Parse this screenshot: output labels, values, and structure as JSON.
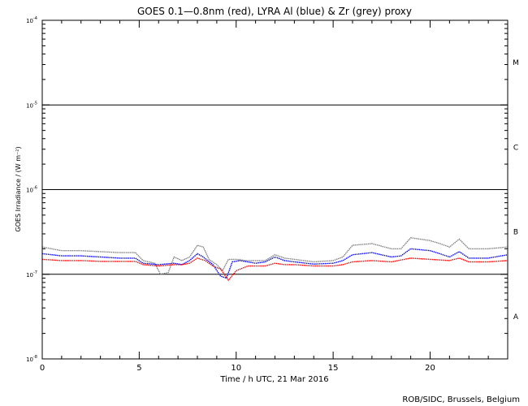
{
  "chart_data": {
    "type": "line",
    "title": "GOES 0.1—0.8nm (red), LYRA Al (blue) & Zr (grey) proxy",
    "xlabel": "Time / h UTC, 21 Mar 2016",
    "ylabel": "GOES Irradiance / (W m⁻²)",
    "xlim": [
      0,
      24
    ],
    "ylim": [
      1e-08,
      0.0001
    ],
    "yscale": "log",
    "x_ticks": [
      0,
      5,
      10,
      15,
      20
    ],
    "y_ticks": [
      {
        "value": 1e-08,
        "base": "10",
        "exp": "-8"
      },
      {
        "value": 1e-07,
        "base": "10",
        "exp": "-7"
      },
      {
        "value": 1e-06,
        "base": "10",
        "exp": "-6"
      },
      {
        "value": 1e-05,
        "base": "10",
        "exp": "-5"
      },
      {
        "value": 0.0001,
        "base": "10",
        "exp": "-4"
      }
    ],
    "flare_class_lines": [
      1e-07,
      1e-06,
      1e-05
    ],
    "flare_classes": [
      {
        "label": "A",
        "value": 3.16e-08
      },
      {
        "label": "B",
        "value": 3.16e-07
      },
      {
        "label": "C",
        "value": 3.16e-06
      },
      {
        "label": "M",
        "value": 3.16e-05
      }
    ],
    "series": [
      {
        "color": "#808080",
        "points": [
          [
            0,
            2.1e-07
          ],
          [
            1,
            1.9e-07
          ],
          [
            2,
            1.9e-07
          ],
          [
            3,
            1.85e-07
          ],
          [
            4,
            1.8e-07
          ],
          [
            4.8,
            1.8e-07
          ],
          [
            5.2,
            1.45e-07
          ],
          [
            5.8,
            1.35e-07
          ],
          [
            6.1,
            1e-07
          ],
          [
            6.5,
            1.05e-07
          ],
          [
            6.8,
            1.6e-07
          ],
          [
            7.2,
            1.45e-07
          ],
          [
            7.6,
            1.6e-07
          ],
          [
            8,
            2.2e-07
          ],
          [
            8.3,
            2.1e-07
          ],
          [
            8.6,
            1.5e-07
          ],
          [
            9,
            1.3e-07
          ],
          [
            9.3,
            1.1e-07
          ],
          [
            9.6,
            1.5e-07
          ],
          [
            10,
            1.5e-07
          ],
          [
            10.5,
            1.45e-07
          ],
          [
            11,
            1.45e-07
          ],
          [
            11.5,
            1.45e-07
          ],
          [
            12,
            1.7e-07
          ],
          [
            12.5,
            1.55e-07
          ],
          [
            13,
            1.5e-07
          ],
          [
            14,
            1.4e-07
          ],
          [
            15,
            1.45e-07
          ],
          [
            15.5,
            1.6e-07
          ],
          [
            16,
            2.2e-07
          ],
          [
            17,
            2.3e-07
          ],
          [
            18,
            2e-07
          ],
          [
            18.5,
            2e-07
          ],
          [
            19,
            2.7e-07
          ],
          [
            20,
            2.5e-07
          ],
          [
            20.5,
            2.3e-07
          ],
          [
            21,
            2.1e-07
          ],
          [
            21.5,
            2.6e-07
          ],
          [
            22,
            2e-07
          ],
          [
            23,
            2e-07
          ],
          [
            24,
            2.1e-07
          ]
        ]
      },
      {
        "color": "#0000ff",
        "points": [
          [
            0,
            1.75e-07
          ],
          [
            1,
            1.65e-07
          ],
          [
            2,
            1.65e-07
          ],
          [
            3,
            1.6e-07
          ],
          [
            4,
            1.55e-07
          ],
          [
            4.8,
            1.55e-07
          ],
          [
            5.2,
            1.35e-07
          ],
          [
            6,
            1.3e-07
          ],
          [
            6.8,
            1.35e-07
          ],
          [
            7.2,
            1.3e-07
          ],
          [
            7.6,
            1.45e-07
          ],
          [
            8,
            1.75e-07
          ],
          [
            8.3,
            1.6e-07
          ],
          [
            8.8,
            1.3e-07
          ],
          [
            9.2,
            9.5e-08
          ],
          [
            9.5,
            9e-08
          ],
          [
            9.8,
            1.4e-07
          ],
          [
            10.2,
            1.45e-07
          ],
          [
            11,
            1.35e-07
          ],
          [
            11.5,
            1.4e-07
          ],
          [
            12,
            1.6e-07
          ],
          [
            12.5,
            1.45e-07
          ],
          [
            13,
            1.4e-07
          ],
          [
            14,
            1.32e-07
          ],
          [
            15,
            1.35e-07
          ],
          [
            15.5,
            1.45e-07
          ],
          [
            16,
            1.7e-07
          ],
          [
            17,
            1.8e-07
          ],
          [
            18,
            1.6e-07
          ],
          [
            18.5,
            1.65e-07
          ],
          [
            19,
            2e-07
          ],
          [
            20,
            1.9e-07
          ],
          [
            20.5,
            1.75e-07
          ],
          [
            21,
            1.6e-07
          ],
          [
            21.5,
            1.85e-07
          ],
          [
            22,
            1.55e-07
          ],
          [
            23,
            1.55e-07
          ],
          [
            24,
            1.7e-07
          ]
        ]
      },
      {
        "color": "#ff0000",
        "points": [
          [
            0,
            1.5e-07
          ],
          [
            1,
            1.45e-07
          ],
          [
            2,
            1.45e-07
          ],
          [
            3,
            1.42e-07
          ],
          [
            4,
            1.42e-07
          ],
          [
            4.8,
            1.42e-07
          ],
          [
            5.2,
            1.3e-07
          ],
          [
            6,
            1.25e-07
          ],
          [
            6.8,
            1.3e-07
          ],
          [
            7.2,
            1.3e-07
          ],
          [
            7.6,
            1.35e-07
          ],
          [
            8,
            1.55e-07
          ],
          [
            8.4,
            1.45e-07
          ],
          [
            8.8,
            1.25e-07
          ],
          [
            9.2,
            1.15e-07
          ],
          [
            9.6,
            8.5e-08
          ],
          [
            10,
            1.1e-07
          ],
          [
            10.6,
            1.25e-07
          ],
          [
            11.5,
            1.25e-07
          ],
          [
            12,
            1.35e-07
          ],
          [
            12.5,
            1.3e-07
          ],
          [
            13,
            1.3e-07
          ],
          [
            14,
            1.25e-07
          ],
          [
            15,
            1.25e-07
          ],
          [
            15.5,
            1.3e-07
          ],
          [
            16,
            1.4e-07
          ],
          [
            17,
            1.45e-07
          ],
          [
            18,
            1.4e-07
          ],
          [
            19,
            1.55e-07
          ],
          [
            20,
            1.5e-07
          ],
          [
            21,
            1.45e-07
          ],
          [
            21.5,
            1.55e-07
          ],
          [
            22,
            1.4e-07
          ],
          [
            23,
            1.4e-07
          ],
          [
            24,
            1.45e-07
          ]
        ]
      }
    ]
  },
  "credit": "ROB/SIDC, Brussels, Belgium"
}
